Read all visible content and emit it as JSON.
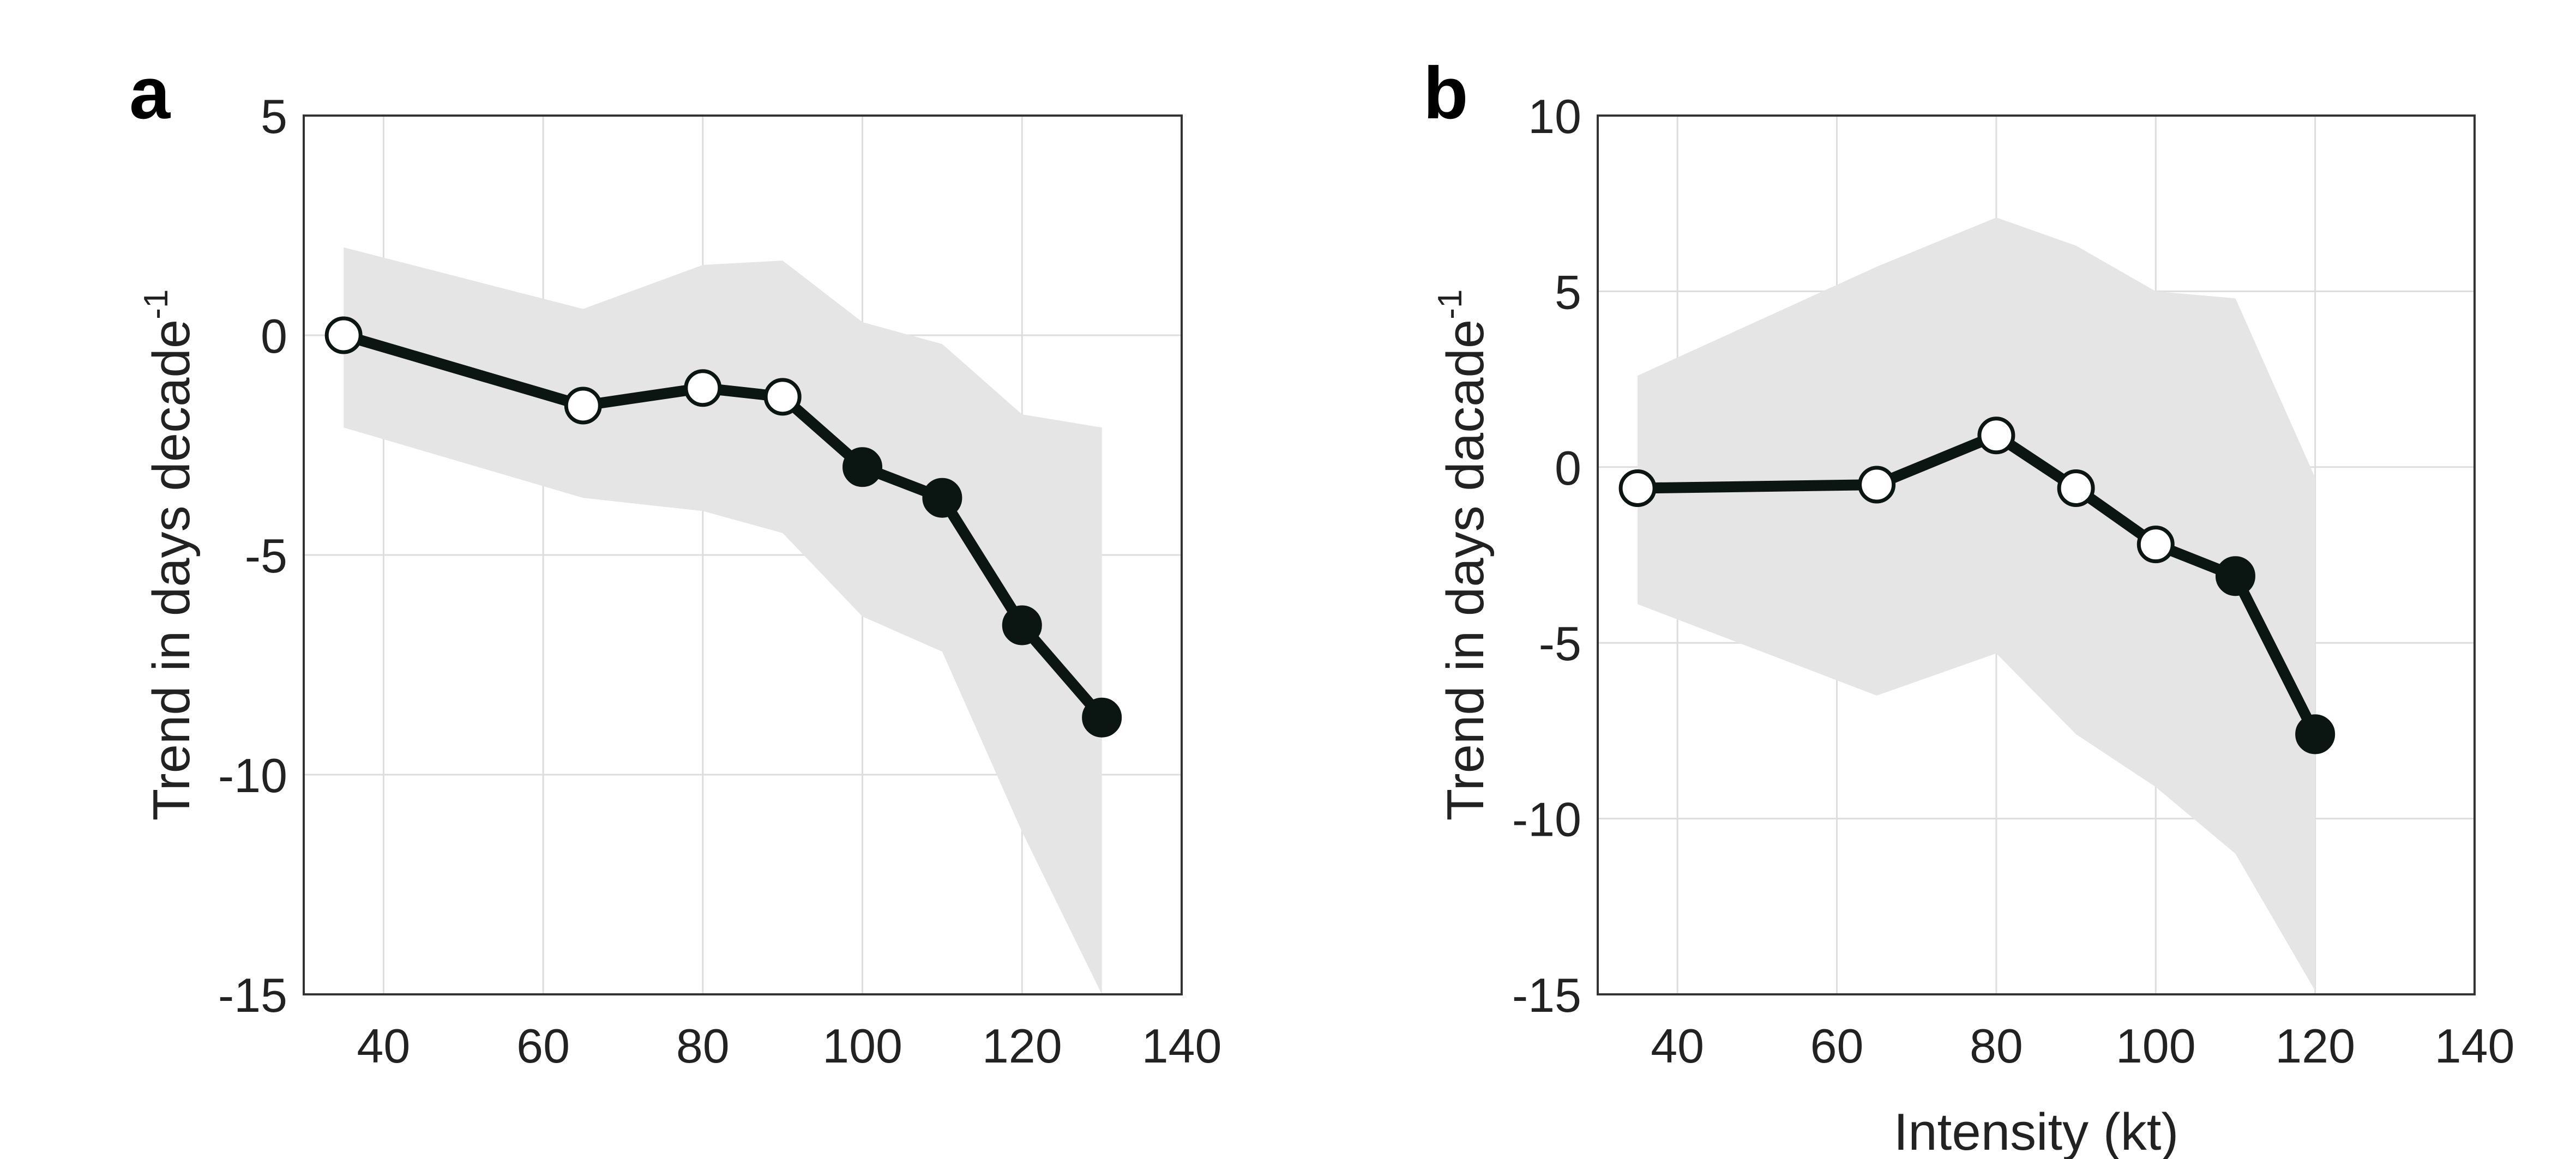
{
  "chart_data": [
    {
      "type": "line",
      "panel_label": "a",
      "xlabel": "",
      "ylabel": "Trend in days decade",
      "ylabel_superscript": "-1",
      "xlim": [
        30,
        140
      ],
      "ylim": [
        -15,
        5
      ],
      "xticks": [
        40,
        60,
        80,
        100,
        120,
        140
      ],
      "yticks": [
        5,
        0,
        -5,
        -10,
        -15
      ],
      "grid": true,
      "x": [
        35,
        65,
        80,
        90,
        100,
        110,
        120,
        130
      ],
      "y": [
        0.0,
        -1.6,
        -1.2,
        -1.4,
        -3.0,
        -3.7,
        -6.6,
        -8.7
      ],
      "filled": [
        false,
        false,
        false,
        false,
        true,
        true,
        true,
        true
      ],
      "band_upper": [
        2.0,
        0.6,
        1.6,
        1.7,
        0.3,
        -0.2,
        -1.8,
        -2.1
      ],
      "band_lower": [
        -2.1,
        -3.7,
        -4.0,
        -4.5,
        -6.4,
        -7.2,
        -11.3,
        -15.0
      ],
      "colors": {
        "line": "#0b1512",
        "band": "#e5e5e5",
        "grid": "#dddddd"
      }
    },
    {
      "type": "line",
      "panel_label": "b",
      "xlabel": "Intensity (kt)",
      "ylabel": "Trend in days dacade",
      "ylabel_superscript": "-1",
      "xlim": [
        30,
        140
      ],
      "ylim": [
        -15,
        10
      ],
      "xticks": [
        40,
        60,
        80,
        100,
        120,
        140
      ],
      "yticks": [
        10,
        5,
        0,
        -5,
        -10,
        -15
      ],
      "grid": true,
      "x": [
        35,
        65,
        80,
        90,
        100,
        110,
        120
      ],
      "y": [
        -0.6,
        -0.5,
        0.9,
        -0.6,
        -2.2,
        -3.1,
        -7.6
      ],
      "filled": [
        false,
        false,
        false,
        false,
        false,
        true,
        true
      ],
      "band_upper": [
        2.6,
        5.7,
        7.1,
        6.3,
        5.0,
        4.8,
        -0.3
      ],
      "band_lower": [
        -3.9,
        -6.5,
        -5.3,
        -7.6,
        -9.1,
        -11.0,
        -14.9
      ],
      "colors": {
        "line": "#0b1512",
        "band": "#e5e5e5",
        "grid": "#dddddd"
      }
    }
  ]
}
